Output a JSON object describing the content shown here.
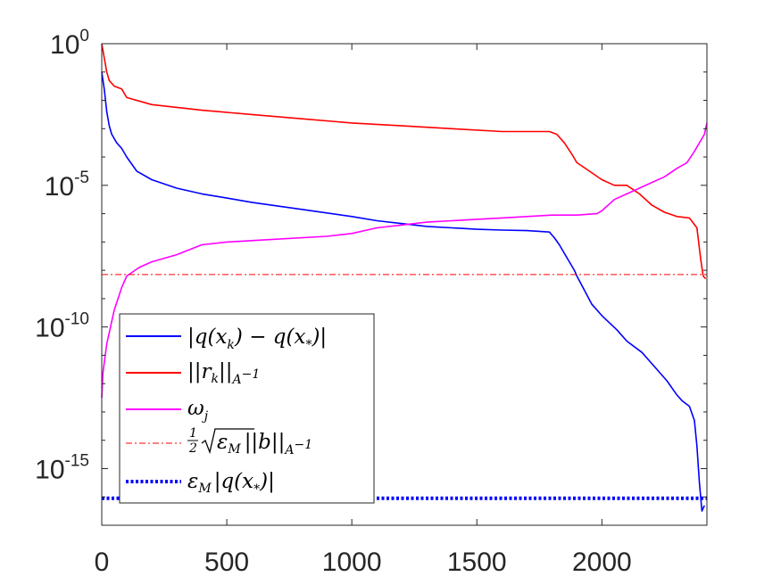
{
  "chart_data": {
    "type": "line",
    "title": "",
    "xlabel": "",
    "ylabel": "",
    "xlim": [
      0,
      2420
    ],
    "ylim_log10": [
      -17,
      0
    ],
    "yscale": "log",
    "grid": false,
    "legend_position": "bottom-left",
    "x_ticks": [
      0,
      500,
      1000,
      1500,
      2000
    ],
    "x_tick_labels": [
      "0",
      "500",
      "1000",
      "1500",
      "2000"
    ],
    "y_ticks_log10": [
      0,
      -5,
      -10,
      -15
    ],
    "y_tick_base": "10",
    "y_tick_exponents": [
      "0",
      "-5",
      "-10",
      "-15"
    ],
    "series": [
      {
        "name": "|q(x_k) - q(x_*)|",
        "legend_label_parts": [
          "|q(x",
          "k",
          ") − q(x",
          "*",
          ")|"
        ],
        "color": "#0000ff",
        "style": "solid",
        "x": [
          0,
          10,
          20,
          30,
          40,
          60,
          80,
          100,
          140,
          200,
          300,
          400,
          500,
          600,
          800,
          1000,
          1100,
          1200,
          1300,
          1400,
          1500,
          1600,
          1700,
          1790,
          1810,
          1830,
          1850,
          1870,
          1890,
          1900,
          1930,
          1960,
          2000,
          2060,
          2100,
          2160,
          2200,
          2260,
          2300,
          2320,
          2350,
          2370,
          2380,
          2390,
          2400,
          2410
        ],
        "y_log10": [
          -1.0,
          -1.6,
          -2.4,
          -2.9,
          -3.2,
          -3.5,
          -3.7,
          -4.0,
          -4.5,
          -4.8,
          -5.1,
          -5.3,
          -5.45,
          -5.6,
          -5.85,
          -6.1,
          -6.25,
          -6.35,
          -6.45,
          -6.5,
          -6.55,
          -6.58,
          -6.6,
          -6.65,
          -6.85,
          -7.1,
          -7.4,
          -7.7,
          -8.0,
          -8.2,
          -8.7,
          -9.2,
          -9.6,
          -10.1,
          -10.5,
          -10.9,
          -11.3,
          -11.9,
          -12.4,
          -12.6,
          -12.8,
          -13.3,
          -14.2,
          -15.5,
          -16.5,
          -16.3
        ]
      },
      {
        "name": "||r_k||_{A^-1}",
        "legend_label_parts": [
          "||r",
          "k",
          "||",
          "A",
          "−1"
        ],
        "color": "#ff0000",
        "style": "solid",
        "x": [
          0,
          10,
          20,
          30,
          50,
          80,
          100,
          200,
          400,
          600,
          800,
          1000,
          1200,
          1400,
          1600,
          1790,
          1820,
          1850,
          1880,
          1900,
          1950,
          2000,
          2050,
          2100,
          2150,
          2200,
          2250,
          2300,
          2350,
          2380,
          2395,
          2405,
          2415
        ],
        "y_log10": [
          0,
          -0.5,
          -1.0,
          -1.3,
          -1.5,
          -1.6,
          -1.9,
          -2.15,
          -2.35,
          -2.5,
          -2.65,
          -2.8,
          -2.9,
          -3.0,
          -3.1,
          -3.1,
          -3.2,
          -3.5,
          -3.9,
          -4.2,
          -4.5,
          -4.8,
          -5.0,
          -5.0,
          -5.3,
          -5.7,
          -5.95,
          -6.1,
          -6.15,
          -6.5,
          -7.6,
          -8.2,
          -8.3
        ]
      },
      {
        "name": "ω_j",
        "legend_label_parts": [
          "ω",
          "j"
        ],
        "color": "#ff00ff",
        "style": "solid",
        "x": [
          0,
          5,
          20,
          50,
          80,
          100,
          150,
          200,
          300,
          400,
          500,
          700,
          900,
          1000,
          1100,
          1200,
          1300,
          1400,
          1500,
          1600,
          1700,
          1800,
          1900,
          1980,
          2000,
          2050,
          2100,
          2150,
          2200,
          2250,
          2300,
          2340,
          2370,
          2390,
          2410,
          2420
        ],
        "y_log10": [
          -12.5,
          -11.6,
          -10.6,
          -9.4,
          -8.6,
          -8.2,
          -7.9,
          -7.7,
          -7.45,
          -7.1,
          -7.0,
          -6.9,
          -6.8,
          -6.7,
          -6.5,
          -6.4,
          -6.3,
          -6.25,
          -6.2,
          -6.15,
          -6.1,
          -6.05,
          -6.05,
          -6.0,
          -5.9,
          -5.5,
          -5.3,
          -5.1,
          -4.9,
          -4.7,
          -4.4,
          -4.2,
          -3.8,
          -3.5,
          -3.2,
          -2.8
        ]
      },
      {
        "name": "1/2 sqrt(ε_M) ||b||_{A^-1}",
        "legend_label_parts": [
          "1",
          "2",
          "ε",
          "M",
          "||b||",
          "A",
          "−1"
        ],
        "color": "#ff0000",
        "style": "dashdot",
        "x": [
          0,
          2420
        ],
        "y_log10": [
          -8.15,
          -8.15
        ]
      },
      {
        "name": "ε_M |q(x_*)|",
        "legend_label_parts": [
          "ε",
          "M",
          "|q(x",
          "*",
          ")|"
        ],
        "color": "#0000ff",
        "style": "dotted",
        "x": [
          0,
          2420
        ],
        "y_log10": [
          -16.05,
          -16.05
        ]
      }
    ]
  }
}
